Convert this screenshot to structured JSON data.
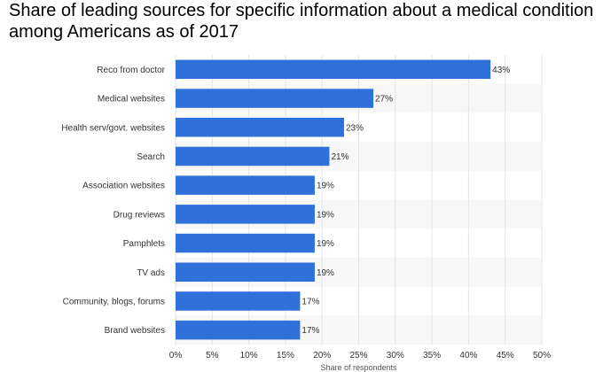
{
  "title": "Share of leading sources for specific information about a medical condition among Americans as of 2017",
  "colors": {
    "bar": "#2f71d8",
    "grid": "#e5e5e5",
    "band": "#f7f7f7",
    "text": "#333333"
  },
  "chart_data": {
    "type": "bar",
    "orientation": "horizontal",
    "title": "Share of leading sources for specific information about a medical condition among Americans as of 2017",
    "categories": [
      "Reco from doctor",
      "Medical websites",
      "Health serv/govt. websites",
      "Search",
      "Association websites",
      "Drug reviews",
      "Pamphlets",
      "TV ads",
      "Community, blogs, forums",
      "Brand websites"
    ],
    "values": [
      43,
      27,
      23,
      21,
      19,
      19,
      19,
      19,
      17,
      17
    ],
    "value_labels": [
      "43%",
      "27%",
      "23%",
      "21%",
      "19%",
      "19%",
      "19%",
      "19%",
      "17%",
      "17%"
    ],
    "xlabel": "Share of respondents",
    "ylabel": "",
    "xlim": [
      0,
      50
    ],
    "x_ticks": [
      0,
      5,
      10,
      15,
      20,
      25,
      30,
      35,
      40,
      45,
      50
    ],
    "x_tick_labels": [
      "0%",
      "5%",
      "10%",
      "15%",
      "20%",
      "25%",
      "30%",
      "35%",
      "40%",
      "45%",
      "50%"
    ],
    "grid": true
  }
}
